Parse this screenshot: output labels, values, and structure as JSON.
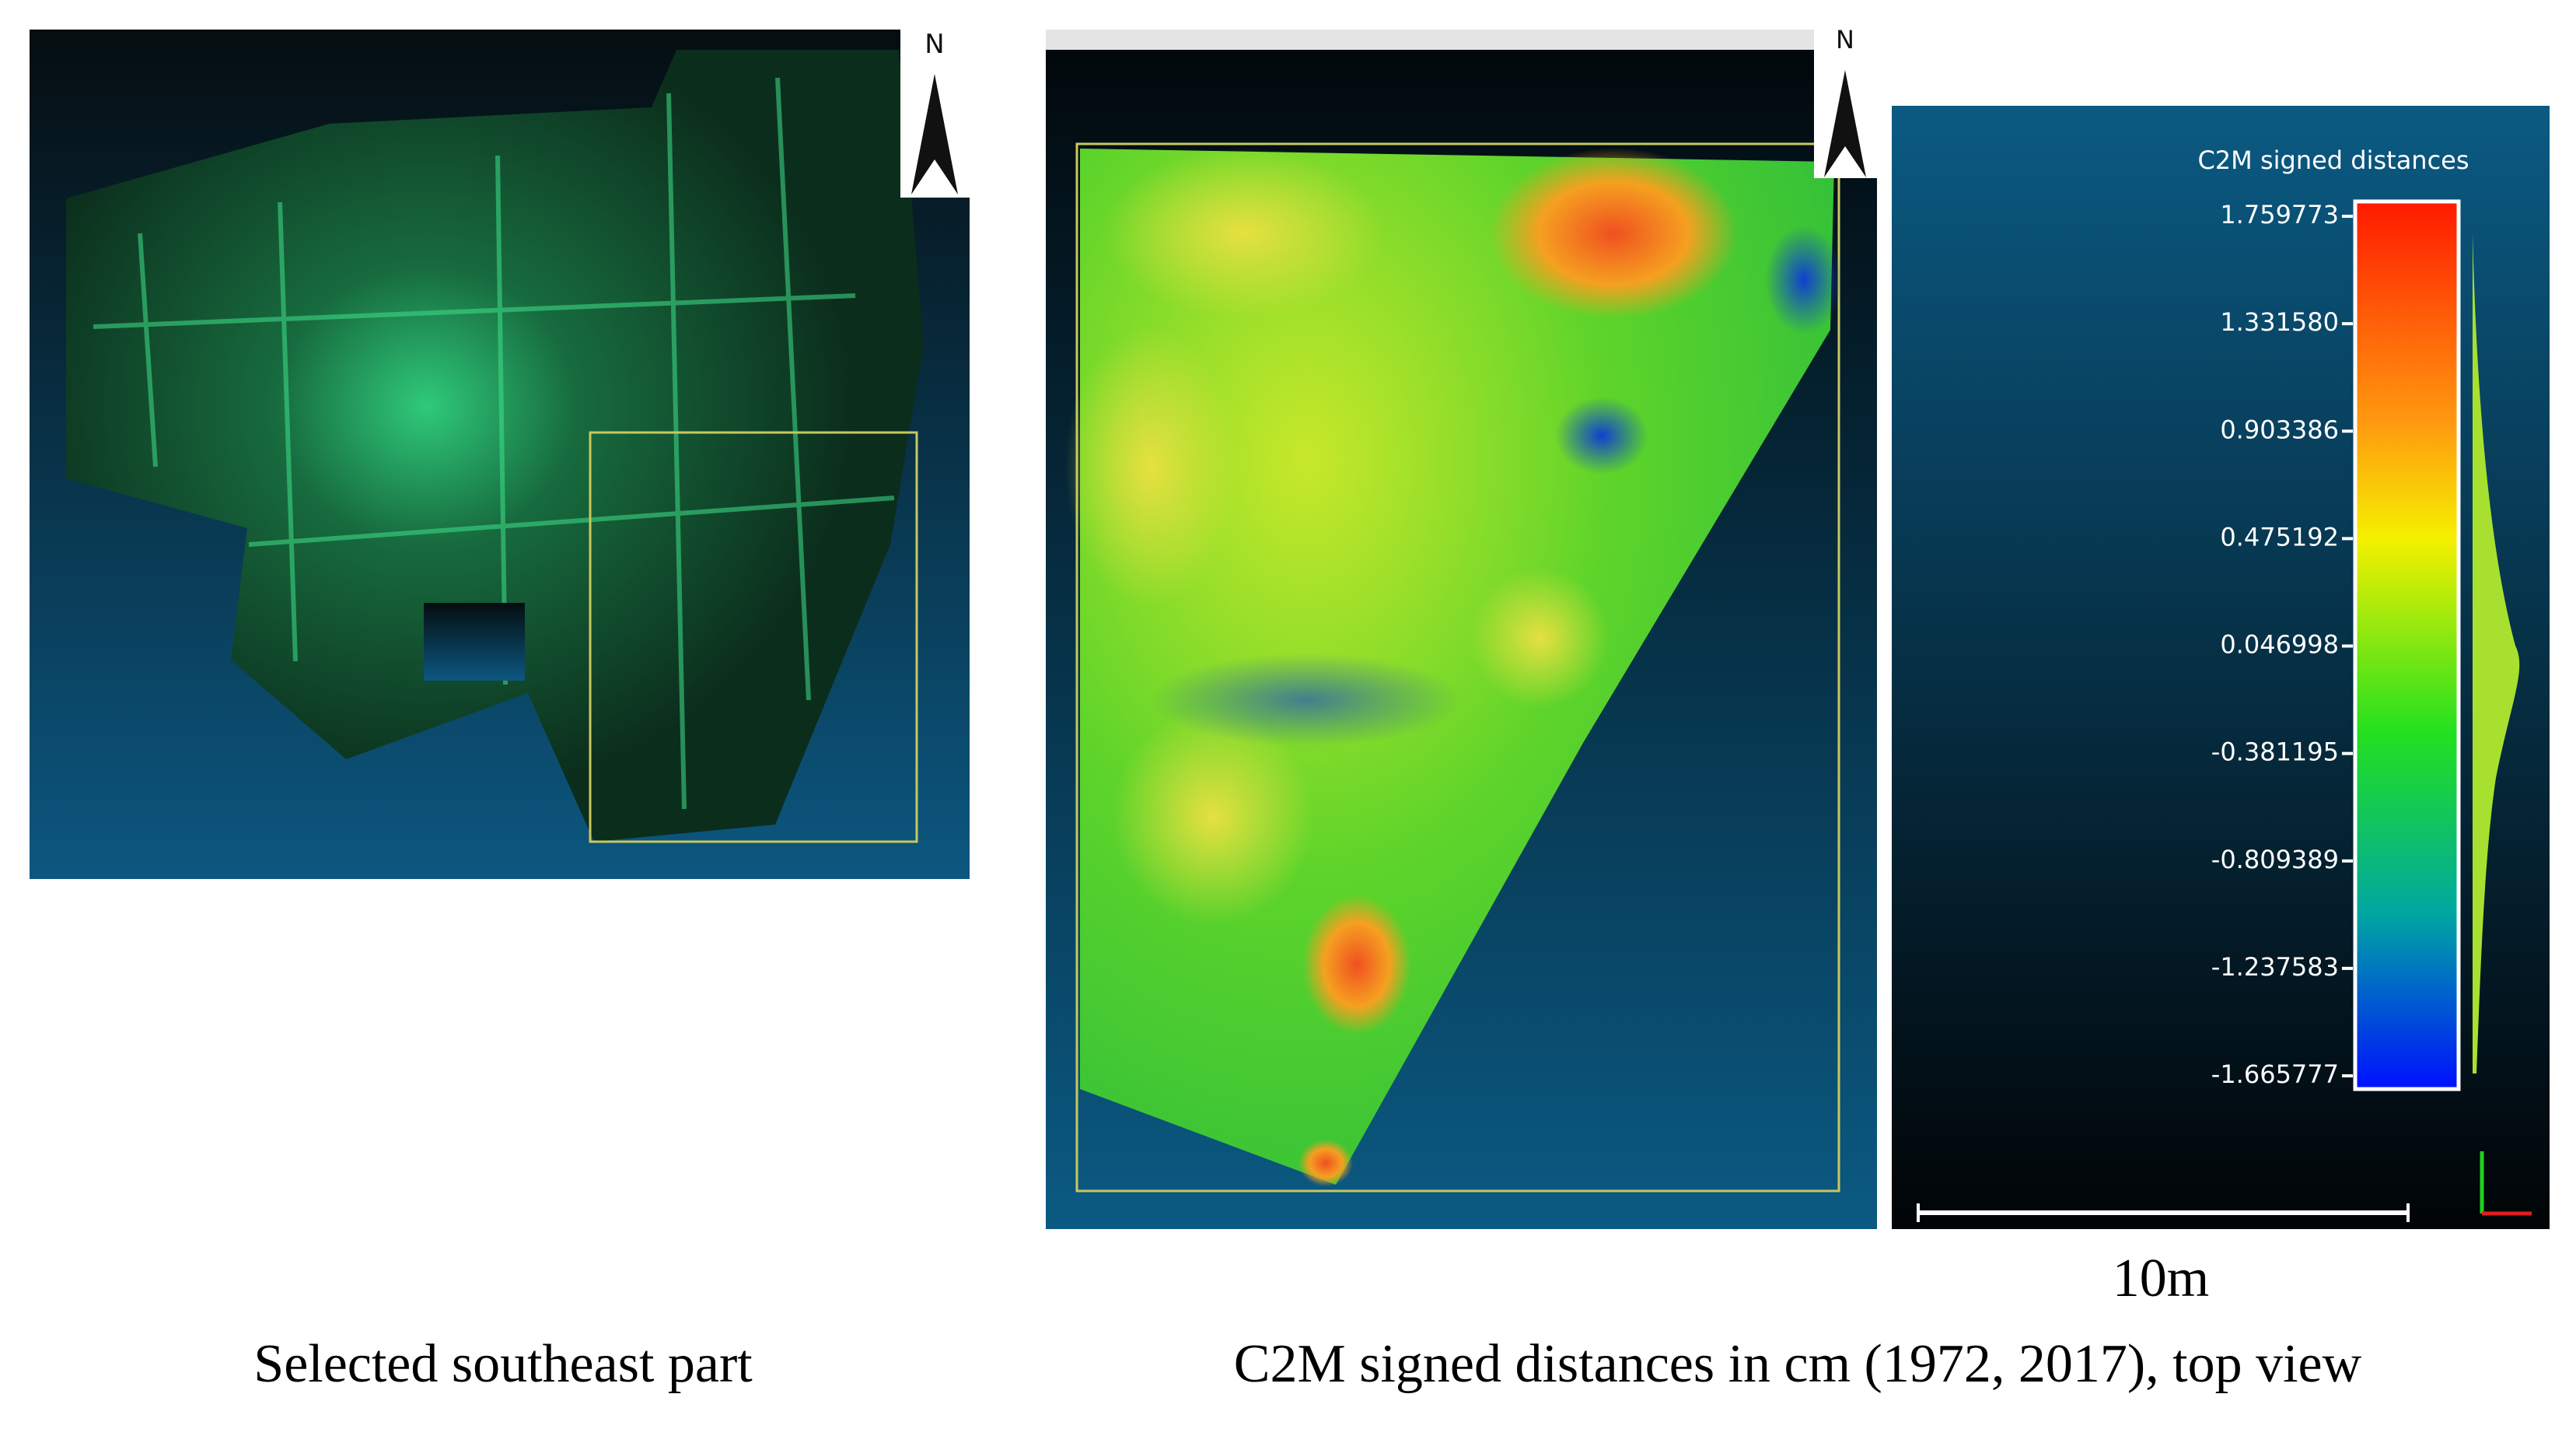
{
  "left_panel": {
    "north_label": "N",
    "caption": "Selected southeast part"
  },
  "right_panel": {
    "north_label": "N",
    "scale_title": "C2M signed distances",
    "scale_labels": [
      "1.759773",
      "1.331580",
      "0.903386",
      "0.475192",
      "0.046998",
      "-0.381195",
      "-0.809389",
      "-1.237583",
      "-1.665777"
    ],
    "scale_bar_label": "10m",
    "caption": "C2M signed distances in cm (1972, 2017), top view"
  }
}
